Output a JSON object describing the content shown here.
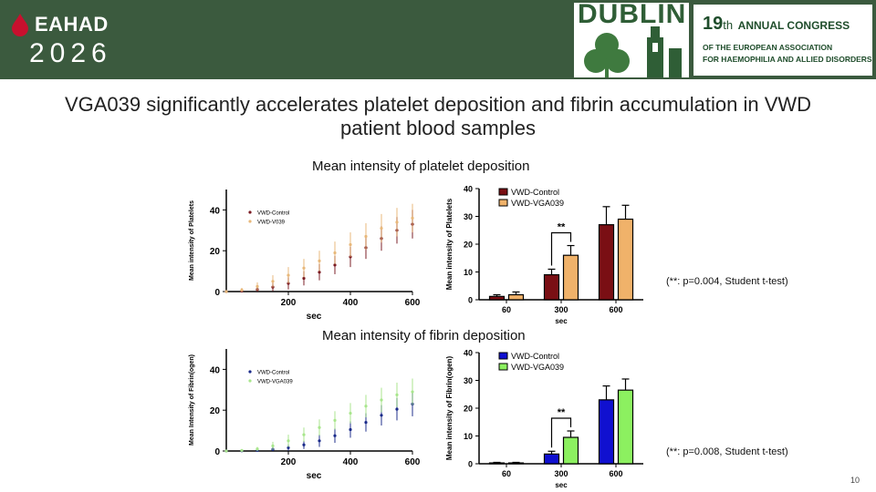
{
  "header": {
    "logo_text": "EAHAD",
    "logo_year": "2026",
    "city": "DUBLIN",
    "congress_number": "19",
    "congress_suffix": "th",
    "congress_line1": "ANNUAL CONGRESS",
    "congress_line2": "OF THE EUROPEAN ASSOCIATION",
    "congress_line3": "FOR HAEMOPHILIA AND ALLIED DISORDERS",
    "colors": {
      "band": "#3b5a3e",
      "logo_drop": "#c8102e"
    }
  },
  "slide": {
    "title": "VGA039 significantly accelerates platelet deposition and fibrin accumulation in VWD patient blood samples",
    "page_number": "10"
  },
  "sections": {
    "platelet": {
      "title": "Mean intensity of platelet deposition",
      "stat_note": "(**: p=0.004, Student t-test)"
    },
    "fibrin": {
      "title": "Mean intensity of fibrin deposition",
      "stat_note": "(**: p=0.008, Student t-test)"
    }
  },
  "chart_data": [
    {
      "id": "platelet_time",
      "type": "scatter",
      "xlabel": "sec",
      "ylabel": "Mean intensity of Platelets",
      "xlim": [
        0,
        600
      ],
      "ylim": [
        0,
        50
      ],
      "xticks": [
        200,
        400,
        600
      ],
      "yticks": [
        0,
        20,
        40
      ],
      "legend": "top-left",
      "series": [
        {
          "name": "VWD-Control",
          "color": "#7a1a22",
          "x": [
            0,
            50,
            100,
            150,
            200,
            250,
            300,
            350,
            400,
            450,
            500,
            550,
            600
          ],
          "y": [
            0,
            0.3,
            1,
            2.2,
            4,
            6.5,
            9.5,
            13,
            17,
            21.5,
            26,
            30,
            33
          ],
          "err": [
            0,
            0.5,
            1,
            2,
            3,
            3.5,
            4,
            4.5,
            5,
            5.5,
            6,
            6.5,
            7
          ]
        },
        {
          "name": "VWD-V039",
          "color": "#e8b87a",
          "x": [
            0,
            50,
            100,
            150,
            200,
            250,
            300,
            350,
            400,
            450,
            500,
            550,
            600
          ],
          "y": [
            0,
            0.8,
            2.5,
            5,
            8,
            11.5,
            15,
            19,
            23,
            27,
            31,
            34,
            36
          ],
          "err": [
            0,
            1,
            2,
            3,
            4,
            4.5,
            5,
            5.5,
            6,
            6.5,
            7,
            7,
            7
          ]
        }
      ]
    },
    {
      "id": "platelet_bar",
      "type": "bar",
      "xlabel": "sec",
      "ylabel": "Mean intensity of Platelets",
      "categories": [
        "60",
        "300",
        "600"
      ],
      "ylim": [
        0,
        40
      ],
      "yticks": [
        0,
        10,
        20,
        30,
        40
      ],
      "legend": "top-left",
      "series": [
        {
          "name": "VWD-Control",
          "color": "#7a0f14",
          "values": [
            1.2,
            9,
            27
          ],
          "err": [
            0.6,
            2,
            6.5
          ]
        },
        {
          "name": "VWD-VGA039",
          "color": "#f0b26a",
          "values": [
            1.8,
            16,
            29
          ],
          "err": [
            1,
            3.5,
            5
          ]
        }
      ],
      "annotation": {
        "label": "**",
        "category": "300"
      }
    },
    {
      "id": "fibrin_time",
      "type": "scatter",
      "xlabel": "sec",
      "ylabel": "Mean Intensity of Fibrin(ogen)",
      "xlim": [
        0,
        600
      ],
      "ylim": [
        0,
        50
      ],
      "xticks": [
        200,
        400,
        600
      ],
      "yticks": [
        0,
        20,
        40
      ],
      "legend": "top-left",
      "series": [
        {
          "name": "VWD-Control",
          "color": "#1a2a8a",
          "x": [
            0,
            50,
            100,
            150,
            200,
            250,
            300,
            350,
            400,
            450,
            500,
            550,
            600
          ],
          "y": [
            0,
            0.1,
            0.3,
            0.8,
            1.6,
            3,
            5,
            7.5,
            10.5,
            14,
            17.5,
            20.5,
            23
          ],
          "err": [
            0,
            0.2,
            0.4,
            1,
            1.5,
            2,
            3,
            3.5,
            4,
            4.5,
            5,
            5.5,
            6
          ]
        },
        {
          "name": "VWD-VGA039",
          "color": "#a8e68c",
          "x": [
            0,
            50,
            100,
            150,
            200,
            250,
            300,
            350,
            400,
            450,
            500,
            550,
            600
          ],
          "y": [
            0,
            0.3,
            1,
            2.5,
            5,
            8,
            11.5,
            15,
            18.5,
            22,
            25,
            27.5,
            29
          ],
          "err": [
            0,
            0.5,
            1,
            2,
            3,
            3.5,
            4,
            4.5,
            5,
            5.5,
            6,
            6,
            6.5
          ]
        }
      ]
    },
    {
      "id": "fibrin_bar",
      "type": "bar",
      "xlabel": "sec",
      "ylabel": "Mean intensity of Fibrin(ogen)",
      "categories": [
        "60",
        "300",
        "600"
      ],
      "ylim": [
        0,
        40
      ],
      "yticks": [
        0,
        10,
        20,
        30,
        40
      ],
      "legend": "top-left",
      "series": [
        {
          "name": "VWD-Control",
          "color": "#1010d0",
          "values": [
            0.3,
            3.5,
            23
          ],
          "err": [
            0.2,
            1,
            5
          ]
        },
        {
          "name": "VWD-VGA039",
          "color": "#8cf060",
          "values": [
            0.3,
            9.5,
            26.5
          ],
          "err": [
            0.2,
            2.3,
            4
          ]
        }
      ],
      "annotation": {
        "label": "**",
        "category": "300"
      }
    }
  ]
}
